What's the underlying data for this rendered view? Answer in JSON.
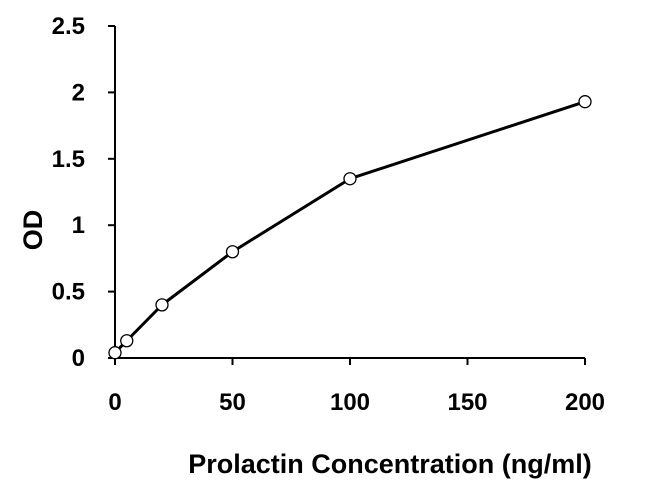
{
  "chart_data": {
    "type": "line",
    "title": "",
    "xlabel": "Prolactin Concentration (ng/ml)",
    "ylabel": "OD",
    "xlim": [
      0,
      200
    ],
    "ylim": [
      0,
      2.5
    ],
    "xticks": [
      0,
      50,
      100,
      150,
      200
    ],
    "yticks": [
      0,
      0.5,
      1,
      1.5,
      2,
      2.5
    ],
    "xtick_labels": [
      "0",
      "50",
      "100",
      "150",
      "200"
    ],
    "ytick_labels": [
      "0",
      "0.5",
      "1",
      "1.5",
      "2",
      "2.5"
    ],
    "grid": false,
    "legend": "none",
    "series": [
      {
        "x": [
          0,
          5,
          20,
          50,
          100,
          200
        ],
        "y": [
          0.04,
          0.13,
          0.4,
          0.8,
          1.35,
          1.93
        ]
      }
    ],
    "colors": {
      "line": "#000000",
      "marker_fill": "#ffffff",
      "marker_stroke": "#000000",
      "axis": "#000000"
    }
  }
}
